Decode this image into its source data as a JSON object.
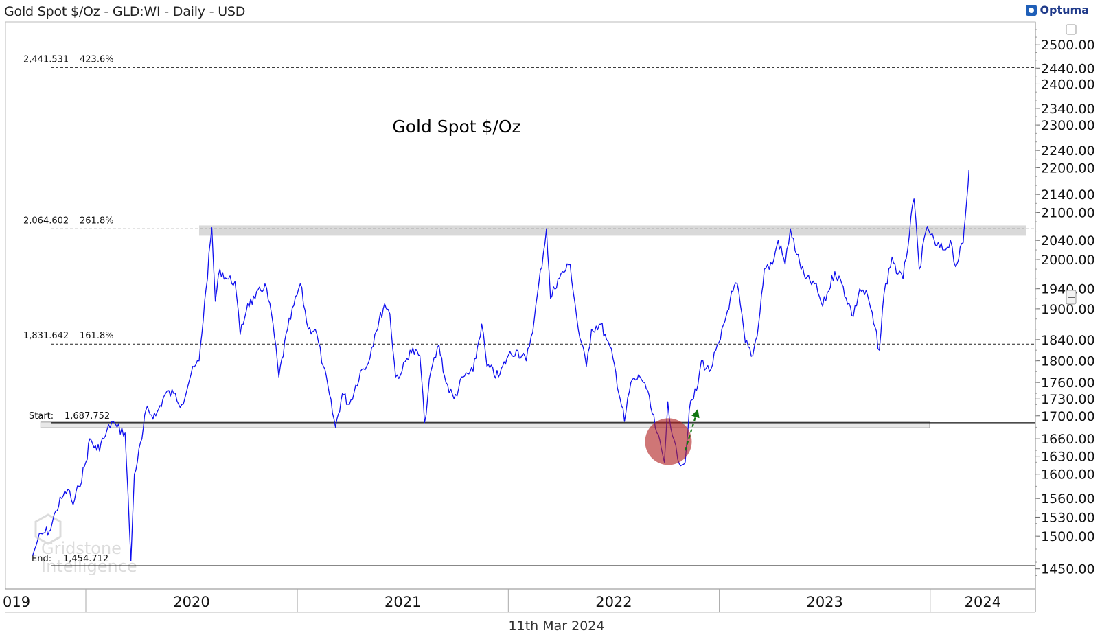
{
  "header": {
    "title": "Gold Spot $/Oz - GLD:WI - Daily - USD",
    "brand": "Optuma",
    "date": "11th Mar 2024"
  },
  "chart_data": {
    "type": "line",
    "title": "Gold Spot $/Oz",
    "watermark": [
      "Gridstone",
      "Intelligence"
    ],
    "series": [
      {
        "name": "",
        "color": "#1010ee",
        "points": [
          [
            "2019-10-01",
            1470
          ],
          [
            "2019-10-10",
            1495
          ],
          [
            "2019-10-20",
            1505
          ],
          [
            "2019-11-01",
            1510
          ],
          [
            "2019-11-10",
            1540
          ],
          [
            "2019-11-20",
            1560
          ],
          [
            "2019-12-01",
            1575
          ],
          [
            "2019-12-10",
            1550
          ],
          [
            "2019-12-20",
            1580
          ],
          [
            "2020-01-01",
            1620
          ],
          [
            "2020-01-08",
            1660
          ],
          [
            "2020-01-20",
            1640
          ],
          [
            "2020-02-01",
            1660
          ],
          [
            "2020-02-15",
            1690
          ],
          [
            "2020-02-24",
            1680
          ],
          [
            "2020-03-09",
            1670
          ],
          [
            "2020-03-19",
            1462
          ],
          [
            "2020-03-25",
            1600
          ],
          [
            "2020-04-07",
            1660
          ],
          [
            "2020-04-14",
            1710
          ],
          [
            "2020-05-01",
            1700
          ],
          [
            "2020-05-18",
            1740
          ],
          [
            "2020-06-01",
            1740
          ],
          [
            "2020-06-15",
            1720
          ],
          [
            "2020-07-01",
            1775
          ],
          [
            "2020-07-15",
            1800
          ],
          [
            "2020-07-27",
            1940
          ],
          [
            "2020-08-06",
            2067
          ],
          [
            "2020-08-12",
            1915
          ],
          [
            "2020-08-20",
            1980
          ],
          [
            "2020-09-01",
            1960
          ],
          [
            "2020-09-15",
            1955
          ],
          [
            "2020-09-24",
            1850
          ],
          [
            "2020-10-07",
            1910
          ],
          [
            "2020-10-20",
            1920
          ],
          [
            "2020-11-06",
            1950
          ],
          [
            "2020-11-20",
            1870
          ],
          [
            "2020-11-30",
            1770
          ],
          [
            "2020-12-15",
            1860
          ],
          [
            "2021-01-06",
            1950
          ],
          [
            "2021-01-20",
            1860
          ],
          [
            "2021-02-01",
            1860
          ],
          [
            "2021-02-15",
            1790
          ],
          [
            "2021-03-08",
            1680
          ],
          [
            "2021-03-20",
            1740
          ],
          [
            "2021-04-01",
            1720
          ],
          [
            "2021-04-20",
            1780
          ],
          [
            "2021-05-01",
            1790
          ],
          [
            "2021-05-15",
            1850
          ],
          [
            "2021-06-01",
            1910
          ],
          [
            "2021-06-10",
            1890
          ],
          [
            "2021-06-20",
            1770
          ],
          [
            "2021-07-01",
            1780
          ],
          [
            "2021-07-15",
            1820
          ],
          [
            "2021-08-01",
            1810
          ],
          [
            "2021-08-09",
            1688
          ],
          [
            "2021-08-20",
            1780
          ],
          [
            "2021-09-03",
            1830
          ],
          [
            "2021-09-15",
            1760
          ],
          [
            "2021-09-29",
            1730
          ],
          [
            "2021-10-15",
            1770
          ],
          [
            "2021-11-01",
            1780
          ],
          [
            "2021-11-16",
            1870
          ],
          [
            "2021-11-25",
            1790
          ],
          [
            "2021-12-15",
            1770
          ],
          [
            "2022-01-01",
            1810
          ],
          [
            "2022-01-15",
            1820
          ],
          [
            "2022-02-01",
            1800
          ],
          [
            "2022-02-15",
            1880
          ],
          [
            "2022-03-08",
            2065
          ],
          [
            "2022-03-15",
            1920
          ],
          [
            "2022-03-28",
            1960
          ],
          [
            "2022-04-18",
            1990
          ],
          [
            "2022-05-02",
            1860
          ],
          [
            "2022-05-16",
            1790
          ],
          [
            "2022-05-25",
            1860
          ],
          [
            "2022-06-10",
            1870
          ],
          [
            "2022-06-20",
            1840
          ],
          [
            "2022-07-01",
            1805
          ],
          [
            "2022-07-21",
            1690
          ],
          [
            "2022-08-01",
            1760
          ],
          [
            "2022-08-17",
            1770
          ],
          [
            "2022-08-25",
            1760
          ],
          [
            "2022-09-15",
            1670
          ],
          [
            "2022-09-28",
            1620
          ],
          [
            "2022-10-04",
            1725
          ],
          [
            "2022-10-12",
            1665
          ],
          [
            "2022-10-21",
            1625
          ],
          [
            "2022-11-03",
            1620
          ],
          [
            "2022-11-10",
            1710
          ],
          [
            "2022-11-25",
            1755
          ],
          [
            "2022-12-01",
            1800
          ],
          [
            "2022-12-15",
            1780
          ],
          [
            "2023-01-03",
            1840
          ],
          [
            "2023-01-20",
            1920
          ],
          [
            "2023-02-01",
            1950
          ],
          [
            "2023-02-15",
            1835
          ],
          [
            "2023-02-28",
            1810
          ],
          [
            "2023-03-10",
            1870
          ],
          [
            "2023-03-20",
            1980
          ],
          [
            "2023-04-03",
            1990
          ],
          [
            "2023-04-13",
            2040
          ],
          [
            "2023-04-25",
            1990
          ],
          [
            "2023-05-04",
            2065
          ],
          [
            "2023-05-15",
            2010
          ],
          [
            "2023-05-30",
            1960
          ],
          [
            "2023-06-15",
            1950
          ],
          [
            "2023-06-29",
            1905
          ],
          [
            "2023-07-20",
            1975
          ],
          [
            "2023-08-01",
            1950
          ],
          [
            "2023-08-21",
            1885
          ],
          [
            "2023-09-01",
            1940
          ],
          [
            "2023-09-15",
            1925
          ],
          [
            "2023-10-05",
            1820
          ],
          [
            "2023-10-13",
            1930
          ],
          [
            "2023-10-27",
            2005
          ],
          [
            "2023-11-06",
            1970
          ],
          [
            "2023-11-15",
            1960
          ],
          [
            "2023-12-04",
            2130
          ],
          [
            "2023-12-13",
            1980
          ],
          [
            "2023-12-27",
            2070
          ],
          [
            "2024-01-10",
            2030
          ],
          [
            "2024-01-25",
            2020
          ],
          [
            "2024-02-05",
            2040
          ],
          [
            "2024-02-14",
            1985
          ],
          [
            "2024-02-27",
            2035
          ],
          [
            "2024-03-01",
            2080
          ],
          [
            "2024-03-05",
            2140
          ],
          [
            "2024-03-08",
            2195
          ]
        ]
      }
    ],
    "x_axis": {
      "start": "2019-08-15",
      "end": "2024-07-01",
      "tick_labels": [
        {
          "label": "019",
          "date": "2019-08-15"
        },
        {
          "label": "2020",
          "date": "2020-01-01"
        },
        {
          "label": "2021",
          "date": "2021-01-01"
        },
        {
          "label": "2022",
          "date": "2022-01-01"
        },
        {
          "label": "2023",
          "date": "2023-01-01"
        },
        {
          "label": "2024",
          "date": "2024-01-01"
        }
      ]
    },
    "y_axis": {
      "scale": "log",
      "ylim": [
        1420,
        2560
      ],
      "tick_labels": [
        "1450.00",
        "1500.00",
        "1530.00",
        "1560.00",
        "1600.00",
        "1630.00",
        "1660.00",
        "1700.00",
        "1730.00",
        "1760.00",
        "1800.00",
        "1840.00",
        "1900.00",
        "1940.00",
        "2000.00",
        "2040.00",
        "2100.00",
        "2140.00",
        "2200.00",
        "2240.00",
        "2300.00",
        "2340.00",
        "2400.00",
        "2440.00",
        "2500.00"
      ]
    },
    "fibonacci_levels": [
      {
        "price_label": "2,441.531",
        "pct_label": "423.6%",
        "value": 2441.531
      },
      {
        "price_label": "2,064.602",
        "pct_label": "261.8%",
        "value": 2064.602
      },
      {
        "price_label": "1,831.642",
        "pct_label": "161.8%",
        "value": 1831.642
      }
    ],
    "fib_anchors": {
      "start_label": "Start:",
      "start_value_label": "1,687.752",
      "start_value": 1687.752,
      "end_label": "End:",
      "end_value_label": "1,454.712",
      "end_value": 1454.712
    },
    "resistance_zone": {
      "from": "2020-07-15",
      "to": "2024-06-15",
      "low": 2050,
      "high": 2072,
      "color": "#d9d9d9"
    },
    "support_zone": {
      "from": "2019-10-15",
      "to": "2023-12-31",
      "low": 1679,
      "high": 1689,
      "color": "#d0d0d0"
    },
    "highlight": {
      "date": "2022-10-05",
      "value": 1655,
      "color": "#b22222"
    },
    "arrow": {
      "from_date": "2022-11-03",
      "from_value": 1640,
      "to_date": "2022-11-25",
      "to_value": 1712,
      "color": "#117711"
    }
  }
}
